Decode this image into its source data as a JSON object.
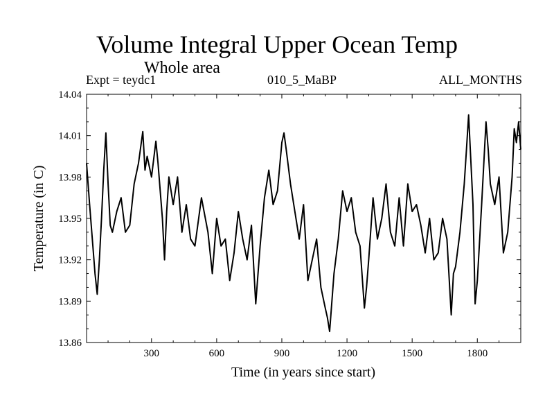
{
  "chart_data": {
    "type": "line",
    "title": "Volume Integral Upper Ocean Temp",
    "subtitle": "Whole area",
    "header": {
      "left": "Expt = teydc1",
      "center": "010_5_MaBP",
      "right": "ALL_MONTHS"
    },
    "xlabel": "Time (in years since start)",
    "ylabel": "Temperature (in C)",
    "xlim": [
      1,
      2000
    ],
    "ylim": [
      13.86,
      14.04
    ],
    "xticks": [
      300,
      600,
      900,
      1200,
      1500,
      1800
    ],
    "xtick_labels": [
      "300",
      "600",
      "900",
      "1200",
      "1500",
      "1800"
    ],
    "yticks": [
      13.86,
      13.89,
      13.92,
      13.95,
      13.98,
      14.01,
      14.04
    ],
    "ytick_labels": [
      "13.86",
      "13.89",
      "13.92",
      "13.95",
      "13.98",
      "14.01",
      "14.04"
    ],
    "series": [
      {
        "name": "Volume integral upper ocean temperature",
        "x": [
          1,
          15,
          30,
          40,
          50,
          60,
          70,
          80,
          90,
          100,
          110,
          120,
          140,
          160,
          180,
          200,
          220,
          240,
          260,
          270,
          280,
          300,
          320,
          330,
          350,
          360,
          370,
          380,
          400,
          420,
          440,
          460,
          480,
          500,
          530,
          560,
          580,
          600,
          620,
          640,
          660,
          680,
          700,
          720,
          740,
          760,
          780,
          800,
          820,
          840,
          860,
          880,
          900,
          910,
          920,
          940,
          960,
          980,
          1000,
          1020,
          1040,
          1060,
          1080,
          1100,
          1110,
          1120,
          1140,
          1160,
          1180,
          1200,
          1220,
          1240,
          1260,
          1280,
          1290,
          1300,
          1320,
          1340,
          1360,
          1380,
          1400,
          1420,
          1440,
          1460,
          1480,
          1500,
          1520,
          1540,
          1560,
          1580,
          1600,
          1620,
          1640,
          1660,
          1680,
          1690,
          1700,
          1720,
          1740,
          1750,
          1760,
          1780,
          1790,
          1800,
          1820,
          1840,
          1850,
          1860,
          1880,
          1900,
          1920,
          1940,
          1960,
          1970,
          1980,
          1990,
          2000
        ],
        "values": [
          13.99,
          13.96,
          13.93,
          13.91,
          13.895,
          13.92,
          13.95,
          13.985,
          14.012,
          13.975,
          13.945,
          13.94,
          13.955,
          13.965,
          13.94,
          13.945,
          13.975,
          13.99,
          14.013,
          13.985,
          13.995,
          13.98,
          14.006,
          13.99,
          13.95,
          13.92,
          13.955,
          13.98,
          13.96,
          13.98,
          13.94,
          13.96,
          13.935,
          13.93,
          13.965,
          13.94,
          13.91,
          13.95,
          13.93,
          13.935,
          13.905,
          13.925,
          13.955,
          13.935,
          13.92,
          13.945,
          13.888,
          13.93,
          13.965,
          13.985,
          13.96,
          13.97,
          14.005,
          14.012,
          14.0,
          13.975,
          13.955,
          13.935,
          13.96,
          13.905,
          13.92,
          13.935,
          13.9,
          13.885,
          13.878,
          13.868,
          13.91,
          13.935,
          13.97,
          13.955,
          13.965,
          13.94,
          13.93,
          13.885,
          13.9,
          13.92,
          13.965,
          13.935,
          13.95,
          13.975,
          13.94,
          13.93,
          13.965,
          13.93,
          13.975,
          13.955,
          13.96,
          13.945,
          13.925,
          13.95,
          13.92,
          13.925,
          13.95,
          13.935,
          13.88,
          13.91,
          13.915,
          13.94,
          13.975,
          14.0,
          14.025,
          13.96,
          13.888,
          13.905,
          13.96,
          14.02,
          14.0,
          13.975,
          13.96,
          13.98,
          13.925,
          13.94,
          13.98,
          14.015,
          14.005,
          14.02,
          14.0
        ]
      }
    ]
  }
}
